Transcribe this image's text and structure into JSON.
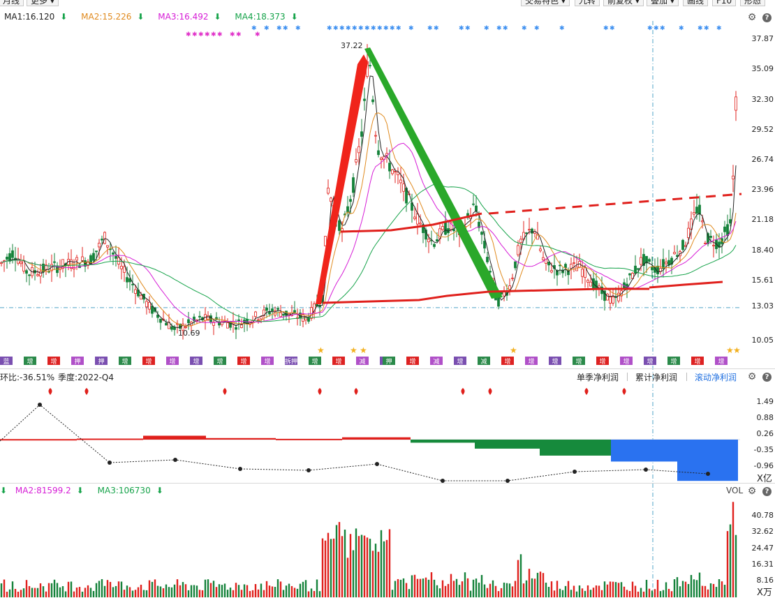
{
  "toolbar": {
    "left_buttons": [
      "月线",
      "更多"
    ],
    "right_buttons": [
      "交易特色",
      "九转",
      "前复权",
      "叠加",
      "画线",
      "F10",
      "形态"
    ]
  },
  "ma": {
    "ma1": "MA1:16.120",
    "ma2": "MA2:15.226",
    "ma3": "MA3:16.492",
    "ma4": "MA4:18.373",
    "colors": {
      "ma1": "#222222",
      "ma2": "#e08a1e",
      "ma3": "#d61cd6",
      "ma4": "#16a34a"
    }
  },
  "price_chart": {
    "type": "candlestick",
    "y_ticks": [
      "37.87",
      "35.09",
      "32.30",
      "29.52",
      "26.74",
      "23.96",
      "21.18",
      "18.40",
      "15.61",
      "13.03",
      "10.05"
    ],
    "high_label": "37.22",
    "low_label": "10.69",
    "reference_price": "13.03"
  },
  "event_labels": [
    "蓝",
    "增",
    "增",
    "押",
    "押",
    "增",
    "增",
    "增",
    "增",
    "增",
    "增",
    "增",
    "拆押",
    "增",
    "增",
    "减",
    "减",
    "押",
    "增",
    "减",
    "增",
    "减",
    "增",
    "增",
    "增",
    "增",
    "增",
    "增",
    "增",
    "增",
    "增",
    "增"
  ],
  "profit": {
    "ratio_label": "环比:-36.51%",
    "quarter_label": "季度:2022-Q4",
    "tabs": [
      "单季净利润",
      "累计净利润",
      "滚动净利润"
    ],
    "active_tab": "滚动净利润",
    "y_ticks": [
      "1.49",
      "0.88",
      "0.26",
      "-0.35",
      "-0.96"
    ],
    "unit": "X亿"
  },
  "volume": {
    "ma2": "MA2:81599.2",
    "ma3": "MA3:106730",
    "label": "VOL",
    "y_ticks": [
      "40.78",
      "32.62",
      "24.47",
      "16.31",
      "8.16"
    ],
    "unit": "X万"
  },
  "icons": {
    "settings": "gear-icon",
    "help": "help-icon",
    "down": "arrow-down-icon"
  }
}
